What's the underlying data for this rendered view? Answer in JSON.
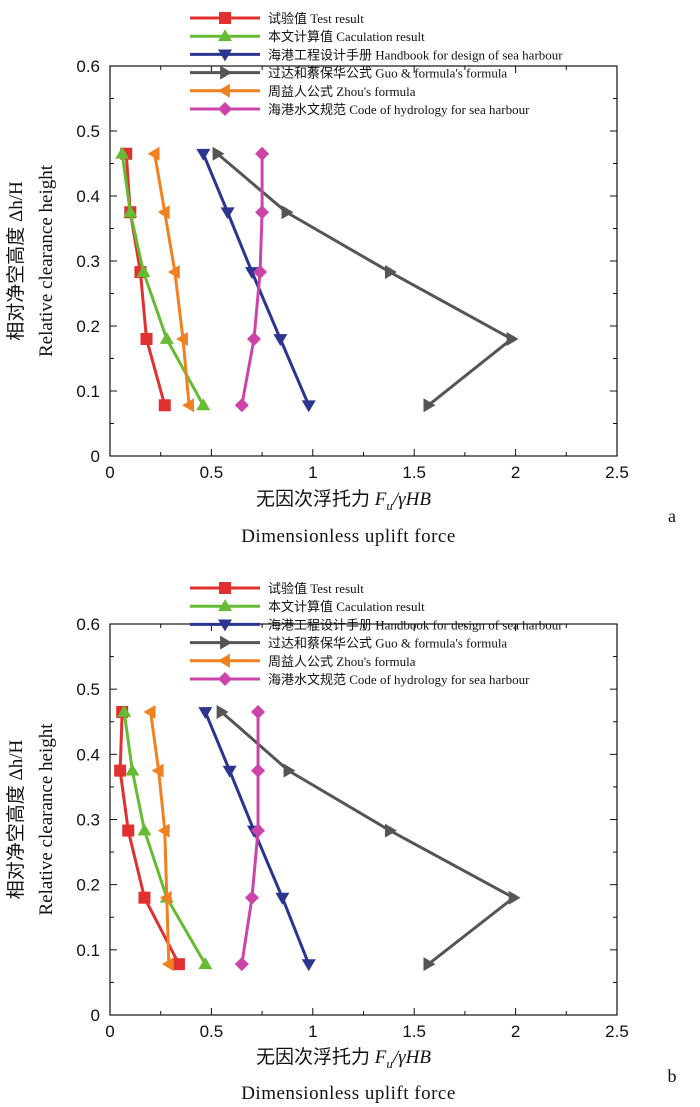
{
  "figure": {
    "panel_labels": [
      "a",
      "b"
    ]
  },
  "chart_data": [
    {
      "type": "line",
      "panel": "a",
      "xlabel_cn": "无因次浮托力",
      "xlabel_sym": "F",
      "xlabel_sub": "u",
      "xlabel_rest": "/γHB",
      "xlabel_en": "Dimensionless uplift force",
      "ylabel_cn": "相对净空高度 Δh/H",
      "ylabel_en": "Relative clearance height",
      "xlim": [
        0,
        2.5
      ],
      "ylim": [
        0,
        0.6
      ],
      "xticks": [
        "0",
        "0.5",
        "1",
        "1.5",
        "2",
        "2.5"
      ],
      "yticks": [
        "0",
        "0.1",
        "0.2",
        "0.3",
        "0.4",
        "0.5",
        "0.6"
      ],
      "series": [
        {
          "name": "试验值 Test result",
          "color": "#e03030",
          "marker": "square",
          "points": [
            [
              0.08,
              0.465
            ],
            [
              0.1,
              0.375
            ],
            [
              0.15,
              0.283
            ],
            [
              0.18,
              0.18
            ],
            [
              0.27,
              0.078
            ]
          ]
        },
        {
          "name": "本文计算值 Caculation result",
          "color": "#66bb33",
          "marker": "tri-up",
          "points": [
            [
              0.06,
              0.465
            ],
            [
              0.1,
              0.375
            ],
            [
              0.165,
              0.283
            ],
            [
              0.28,
              0.18
            ],
            [
              0.46,
              0.078
            ]
          ]
        },
        {
          "name": "海港工程设计手册 Handbook for design of sea harbour",
          "color": "#2b3590",
          "marker": "tri-down",
          "points": [
            [
              0.46,
              0.465
            ],
            [
              0.58,
              0.375
            ],
            [
              0.7,
              0.283
            ],
            [
              0.84,
              0.18
            ],
            [
              0.98,
              0.078
            ]
          ]
        },
        {
          "name": "过达和蔡保华公式 Guo & formula's formula",
          "color": "#555555",
          "marker": "tri-right",
          "points": [
            [
              0.53,
              0.465
            ],
            [
              0.87,
              0.375
            ],
            [
              1.38,
              0.283
            ],
            [
              1.98,
              0.18
            ],
            [
              1.57,
              0.078
            ]
          ]
        },
        {
          "name": "周益人公式 Zhou's formula",
          "color": "#f08020",
          "marker": "tri-left",
          "points": [
            [
              0.22,
              0.465
            ],
            [
              0.27,
              0.375
            ],
            [
              0.32,
              0.283
            ],
            [
              0.36,
              0.18
            ],
            [
              0.39,
              0.078
            ]
          ]
        },
        {
          "name": "海港水文规范 Code of hydrology for sea harbour",
          "color": "#cc44aa",
          "marker": "diamond",
          "points": [
            [
              0.75,
              0.465
            ],
            [
              0.75,
              0.375
            ],
            [
              0.74,
              0.283
            ],
            [
              0.71,
              0.18
            ],
            [
              0.65,
              0.078
            ]
          ]
        }
      ]
    },
    {
      "type": "line",
      "panel": "b",
      "xlabel_cn": "无因次浮托力",
      "xlabel_sym": "F",
      "xlabel_sub": "u",
      "xlabel_rest": "/γHB",
      "xlabel_en": "Dimensionless uplift force",
      "ylabel_cn": "相对净空高度 Δh/H",
      "ylabel_en": "Relative clearance height",
      "xlim": [
        0,
        2.5
      ],
      "ylim": [
        0,
        0.6
      ],
      "xticks": [
        "0",
        "0.5",
        "1",
        "1.5",
        "2",
        "2.5"
      ],
      "yticks": [
        "0",
        "0.1",
        "0.2",
        "0.3",
        "0.4",
        "0.5",
        "0.6"
      ],
      "series": [
        {
          "name": "试验值 Test result",
          "color": "#e03030",
          "marker": "square",
          "points": [
            [
              0.06,
              0.465
            ],
            [
              0.05,
              0.375
            ],
            [
              0.09,
              0.283
            ],
            [
              0.17,
              0.18
            ],
            [
              0.34,
              0.078
            ]
          ]
        },
        {
          "name": "本文计算值 Caculation result",
          "color": "#66bb33",
          "marker": "tri-up",
          "points": [
            [
              0.07,
              0.465
            ],
            [
              0.11,
              0.375
            ],
            [
              0.17,
              0.283
            ],
            [
              0.28,
              0.18
            ],
            [
              0.47,
              0.078
            ]
          ]
        },
        {
          "name": "海港工程设计手册 Handbook for design of sea harbour",
          "color": "#2b3590",
          "marker": "tri-down",
          "points": [
            [
              0.47,
              0.465
            ],
            [
              0.59,
              0.375
            ],
            [
              0.71,
              0.283
            ],
            [
              0.85,
              0.18
            ],
            [
              0.98,
              0.078
            ]
          ]
        },
        {
          "name": "过达和蔡保华公式 Guo & formula's formula",
          "color": "#555555",
          "marker": "tri-right",
          "points": [
            [
              0.55,
              0.465
            ],
            [
              0.88,
              0.375
            ],
            [
              1.38,
              0.283
            ],
            [
              1.99,
              0.18
            ],
            [
              1.57,
              0.078
            ]
          ]
        },
        {
          "name": "周益人公式 Zhou's formula",
          "color": "#f08020",
          "marker": "tri-left",
          "points": [
            [
              0.2,
              0.465
            ],
            [
              0.24,
              0.375
            ],
            [
              0.27,
              0.283
            ],
            [
              0.28,
              0.18
            ],
            [
              0.29,
              0.078
            ]
          ]
        },
        {
          "name": "海港水文规范 Code of hydrology for sea harbour",
          "color": "#cc44aa",
          "marker": "diamond",
          "points": [
            [
              0.73,
              0.465
            ],
            [
              0.73,
              0.375
            ],
            [
              0.73,
              0.283
            ],
            [
              0.7,
              0.18
            ],
            [
              0.65,
              0.078
            ]
          ]
        }
      ]
    }
  ]
}
